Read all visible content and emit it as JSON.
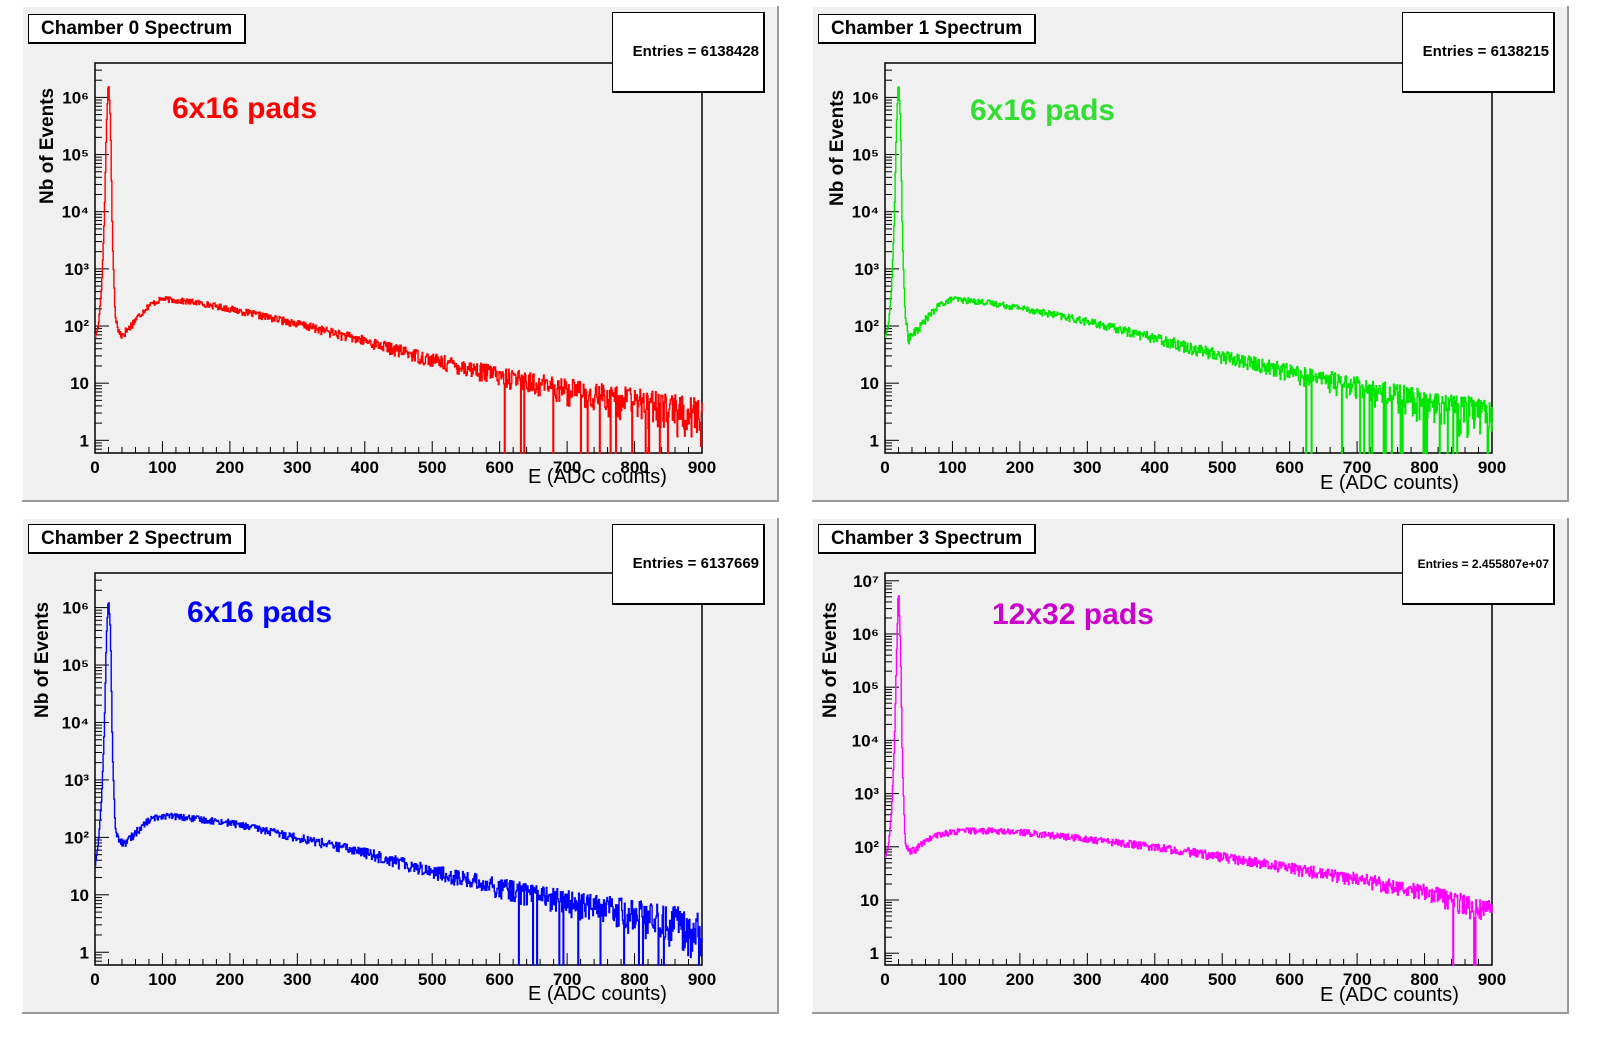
{
  "chart_data": [
    {
      "type": "line",
      "title": "Chamber 0 Spectrum",
      "stats": "Entries = 6138428",
      "annotation": "6x16 pads",
      "xlabel": "E (ADC counts)",
      "ylabel": "Nb of Events",
      "xlim": [
        0,
        900
      ],
      "ylim_log": [
        0.6,
        4000000
      ],
      "yscale": "log",
      "grid": false,
      "xticks": [
        "0",
        "100",
        "200",
        "300",
        "400",
        "500",
        "600",
        "700",
        "800",
        "900"
      ],
      "yticks": [
        "1",
        "10",
        "10²",
        "10³",
        "10⁴",
        "10⁵",
        "10⁶"
      ],
      "series": [
        {
          "color": "#ff0000",
          "x": [
            0,
            5,
            10,
            14,
            17,
            20,
            23,
            26,
            30,
            35,
            40,
            50,
            60,
            80,
            100,
            120,
            150,
            200,
            300,
            400,
            500,
            600,
            700,
            800,
            900
          ],
          "values": [
            60,
            100,
            500,
            8000,
            300000,
            2000000,
            400000,
            3000,
            150,
            80,
            70,
            90,
            130,
            230,
            300,
            280,
            260,
            200,
            110,
            55,
            26,
            14,
            8,
            5,
            3
          ]
        }
      ]
    },
    {
      "type": "line",
      "title": "Chamber 1 Spectrum",
      "stats": "Entries = 6138215",
      "annotation": "6x16 pads",
      "xlabel": "E (ADC counts)",
      "ylabel": "Nb of Events",
      "xlim": [
        0,
        900
      ],
      "ylim_log": [
        0.6,
        4000000
      ],
      "yscale": "log",
      "grid": false,
      "xticks": [
        "0",
        "100",
        "200",
        "300",
        "400",
        "500",
        "600",
        "700",
        "800",
        "900"
      ],
      "yticks": [
        "1",
        "10",
        "10²",
        "10³",
        "10⁴",
        "10⁵",
        "10⁶"
      ],
      "series": [
        {
          "color": "#00e600",
          "x": [
            0,
            5,
            10,
            14,
            17,
            20,
            23,
            26,
            30,
            35,
            40,
            50,
            60,
            80,
            100,
            120,
            150,
            200,
            300,
            400,
            500,
            600,
            700,
            800,
            900
          ],
          "values": [
            60,
            100,
            500,
            8000,
            300000,
            2000000,
            400000,
            3000,
            150,
            60,
            70,
            90,
            130,
            230,
            300,
            280,
            260,
            210,
            120,
            62,
            30,
            16,
            9,
            5,
            3
          ]
        }
      ]
    },
    {
      "type": "line",
      "title": "Chamber 2 Spectrum",
      "stats": "Entries = 6137669",
      "annotation": "6x16 pads",
      "xlabel": "E (ADC counts)",
      "ylabel": "Nb of Events",
      "xlim": [
        0,
        900
      ],
      "ylim_log": [
        0.6,
        4000000
      ],
      "yscale": "log",
      "grid": false,
      "xticks": [
        "0",
        "100",
        "200",
        "300",
        "400",
        "500",
        "600",
        "700",
        "800",
        "900"
      ],
      "yticks": [
        "1",
        "10",
        "10²",
        "10³",
        "10⁴",
        "10⁵",
        "10⁶"
      ],
      "series": [
        {
          "color": "#0000ff",
          "x": [
            0,
            5,
            10,
            14,
            17,
            20,
            23,
            26,
            30,
            35,
            40,
            50,
            60,
            80,
            100,
            120,
            150,
            200,
            300,
            400,
            500,
            600,
            700,
            800,
            900
          ],
          "values": [
            30,
            80,
            500,
            8000,
            300000,
            1500000,
            400000,
            3000,
            150,
            90,
            80,
            90,
            120,
            200,
            240,
            230,
            210,
            180,
            100,
            55,
            26,
            14,
            8,
            5,
            3
          ]
        }
      ]
    },
    {
      "type": "line",
      "title": "Chamber 3 Spectrum",
      "stats": "Entries =   2.455807e+07",
      "annotation": "12x32 pads",
      "xlabel": "E (ADC counts)",
      "ylabel": "Nb of Events",
      "xlim": [
        0,
        900
      ],
      "ylim_log": [
        0.6,
        14000000
      ],
      "yscale": "log",
      "grid": false,
      "xticks": [
        "0",
        "100",
        "200",
        "300",
        "400",
        "500",
        "600",
        "700",
        "800",
        "900"
      ],
      "yticks": [
        "1",
        "10",
        "10²",
        "10³",
        "10⁴",
        "10⁵",
        "10⁶",
        "10⁷"
      ],
      "series": [
        {
          "color": "#ff00ff",
          "x": [
            0,
            5,
            10,
            14,
            17,
            20,
            23,
            26,
            30,
            35,
            40,
            50,
            60,
            80,
            100,
            120,
            150,
            200,
            300,
            400,
            500,
            600,
            700,
            800,
            900
          ],
          "values": [
            60,
            100,
            500,
            8000,
            300000,
            8000000,
            600000,
            3000,
            120,
            80,
            80,
            100,
            130,
            170,
            190,
            200,
            200,
            190,
            140,
            100,
            65,
            40,
            25,
            15,
            6
          ]
        }
      ]
    }
  ]
}
